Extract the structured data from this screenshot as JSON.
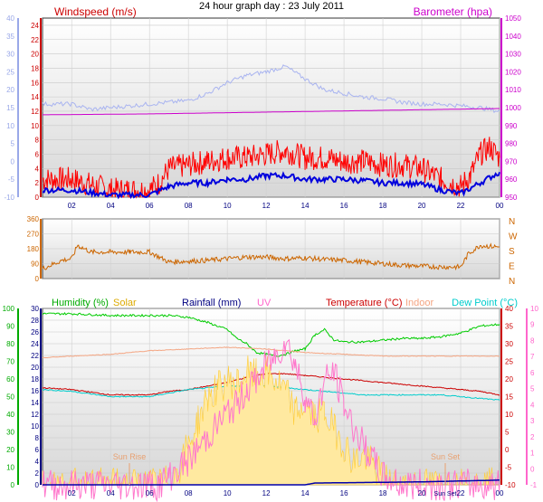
{
  "title": "24 hour graph day : 23 July 2011",
  "chart_data": [
    {
      "id": "wind-baro",
      "type": "line",
      "labels": {
        "windspeed": "Windspeed (m/s)",
        "barometer": "Barometer (hpa)"
      },
      "x_ticks": [
        "02",
        "04",
        "06",
        "08",
        "10",
        "12",
        "14",
        "16",
        "18",
        "20",
        "22",
        "00"
      ],
      "x_range": [
        0.5,
        24.0
      ],
      "left_axis_red": {
        "ticks": [
          0,
          2,
          4,
          6,
          8,
          10,
          12,
          14,
          16,
          18,
          20,
          22,
          24
        ],
        "range": [
          0,
          25
        ],
        "color": "#cc0000"
      },
      "left_axis_blue": {
        "ticks": [
          -10,
          -5,
          0,
          5,
          10,
          15,
          20,
          25,
          30,
          35,
          40
        ],
        "range": [
          -10,
          40
        ],
        "color": "#9aa8e8"
      },
      "right_axis": {
        "ticks": [
          950,
          960,
          970,
          980,
          990,
          1000,
          1010,
          1020,
          1030,
          1040,
          1050
        ],
        "range": [
          950,
          1050
        ],
        "color": "#cc00cc"
      },
      "series": [
        {
          "key": "windspeed",
          "color": "#ff0000",
          "axis": "left_axis_red",
          "x": [
            0.5,
            2,
            4,
            6,
            6.5,
            7,
            8,
            9,
            10,
            11,
            12,
            13,
            14,
            15,
            16,
            17,
            18,
            19,
            20,
            21,
            22,
            22.5,
            23,
            23.5,
            24
          ],
          "y": [
            2.5,
            2.5,
            1.0,
            1.0,
            2.0,
            4.0,
            4.5,
            5.0,
            5.5,
            5.5,
            6.0,
            6.5,
            5.5,
            5.5,
            5.0,
            5.0,
            4.5,
            4.5,
            4.0,
            2.5,
            1.5,
            3.0,
            6.0,
            7.0,
            5.5
          ]
        },
        {
          "key": "windspeed_avg",
          "color": "#0000dd",
          "axis": "left_axis_red",
          "x": [
            0.5,
            2,
            4,
            6,
            7,
            8,
            9,
            10,
            11,
            12,
            13,
            14,
            15,
            16,
            17,
            18,
            19,
            20,
            21,
            22,
            23,
            24
          ],
          "y": [
            1.0,
            1.0,
            0.3,
            0.3,
            1.5,
            2.0,
            2.0,
            2.5,
            2.5,
            3.0,
            3.0,
            2.5,
            2.5,
            2.5,
            2.3,
            2.0,
            2.0,
            1.8,
            1.0,
            0.5,
            2.0,
            3.5
          ]
        },
        {
          "key": "windspeed_blue_scale",
          "color": "#a9b4f0",
          "axis": "left_axis_blue",
          "x": [
            0.5,
            2,
            3,
            4,
            5,
            6,
            7,
            8,
            9,
            10,
            11,
            12,
            13,
            14,
            15,
            16,
            17,
            18,
            19,
            20,
            21,
            22,
            23,
            24
          ],
          "y": [
            16,
            16,
            14.5,
            15,
            15.5,
            16,
            16.5,
            17,
            19,
            22,
            24,
            25,
            26.5,
            23,
            20,
            19,
            18,
            17.5,
            16.5,
            16,
            16,
            15.5,
            15,
            14
          ]
        },
        {
          "key": "barometer",
          "color": "#cc00cc",
          "axis": "right_axis",
          "x": [
            0.5,
            6,
            12,
            18,
            24
          ],
          "y": [
            996,
            996.5,
            997.5,
            998.5,
            999.5
          ]
        }
      ]
    },
    {
      "id": "wind-direction",
      "type": "line",
      "left_ticks": [
        0,
        90,
        180,
        270,
        360
      ],
      "range": [
        0,
        360
      ],
      "right_labels": [
        "N",
        "W",
        "S",
        "E",
        "N"
      ],
      "series": [
        {
          "key": "direction",
          "color": "#cc6600",
          "x": [
            0.5,
            1,
            1.5,
            2,
            2.3,
            3,
            4,
            5,
            6,
            7,
            8,
            9,
            10,
            11,
            12,
            13,
            14,
            15,
            16,
            17,
            18,
            19,
            20,
            21,
            22,
            22.4,
            23,
            24
          ],
          "y": [
            60,
            85,
            110,
            120,
            200,
            160,
            160,
            160,
            160,
            100,
            105,
            110,
            120,
            130,
            130,
            120,
            125,
            115,
            110,
            100,
            90,
            80,
            75,
            70,
            70,
            150,
            200,
            190
          ]
        }
      ]
    },
    {
      "id": "temp-hum-solar",
      "type": "line",
      "labels": {
        "humidity": "Humidity (%)",
        "solar": "Solar",
        "rainfall": "Rainfall (mm)",
        "uv": "UV",
        "temperature": "Temperature (°C)",
        "indoor": "Indoor",
        "dewpoint": "Dew Point (°C)"
      },
      "annotations": [
        "Sun Rise",
        "Sun Set"
      ],
      "x_tick_sunset": "Sun Set",
      "axes": {
        "humidity": {
          "ticks": [
            0,
            10,
            20,
            30,
            40,
            50,
            60,
            70,
            80,
            90,
            100
          ],
          "range": [
            0,
            100
          ],
          "color": "#00aa00"
        },
        "rainfall": {
          "ticks": [
            0,
            2,
            4,
            6,
            8,
            10,
            12,
            14,
            16,
            18,
            20,
            22,
            24,
            26,
            28,
            30
          ],
          "range": [
            0,
            30
          ],
          "color": "#000080"
        },
        "temperature": {
          "ticks": [
            -10,
            -5,
            0,
            5,
            10,
            15,
            20,
            25,
            30,
            35,
            40
          ],
          "range": [
            -10,
            40
          ],
          "color": "#cc0000"
        },
        "uv": {
          "ticks": [
            -1,
            0,
            1,
            2,
            3,
            4,
            5,
            6,
            7,
            8,
            9,
            10
          ],
          "range": [
            -1,
            10
          ],
          "color": "#ff66cc"
        }
      },
      "series": [
        {
          "key": "humidity",
          "color": "#00cc00",
          "axis": "humidity",
          "x": [
            0.5,
            2,
            4,
            6,
            7,
            8,
            9,
            10,
            10.5,
            11,
            11.5,
            12,
            12.5,
            13,
            13.5,
            14,
            14.5,
            15,
            15.5,
            16,
            17,
            18,
            19,
            20,
            21,
            22,
            23,
            24
          ],
          "y": [
            97,
            97,
            96,
            96,
            96,
            95,
            92,
            88,
            83,
            80,
            75,
            74,
            73,
            74,
            76,
            77,
            85,
            88,
            82,
            81,
            81,
            82,
            83,
            83,
            84,
            86,
            90,
            91
          ]
        },
        {
          "key": "temperature",
          "color": "#cc0000",
          "axis": "temperature",
          "x": [
            0.5,
            2,
            4,
            6,
            7,
            8,
            9,
            10,
            11,
            12,
            13,
            14,
            15,
            16,
            17,
            18,
            19,
            20,
            21,
            22,
            23,
            24
          ],
          "y": [
            17.5,
            17,
            15.5,
            15.5,
            16.5,
            17,
            18,
            19,
            20.5,
            21.5,
            21.5,
            21,
            20.5,
            20,
            19.5,
            19,
            18.5,
            18,
            17.5,
            17,
            16.5,
            15.5
          ]
        },
        {
          "key": "dewpoint",
          "color": "#00cccc",
          "axis": "temperature",
          "x": [
            0.5,
            2,
            4,
            6,
            7,
            8,
            9,
            10,
            11,
            12,
            13,
            14,
            15,
            16,
            17,
            18,
            19,
            20,
            21,
            22,
            23,
            24
          ],
          "y": [
            17,
            16.5,
            15,
            15,
            16,
            17,
            17.5,
            18,
            18,
            18,
            17.5,
            17,
            16.5,
            16,
            15.5,
            15.5,
            15.5,
            15.5,
            15.5,
            15,
            14.5,
            14
          ]
        },
        {
          "key": "indoor",
          "color": "#f4a582",
          "axis": "temperature",
          "x": [
            0.5,
            2,
            4,
            6,
            8,
            10,
            12,
            13,
            14,
            16,
            18,
            20,
            22,
            24
          ],
          "y": [
            26,
            26.5,
            27,
            28,
            28.5,
            29,
            28.5,
            28,
            27.5,
            27,
            26.5,
            26.5,
            26.5,
            26.5
          ]
        },
        {
          "key": "solar",
          "color": "#ffcc33",
          "axis": "uv",
          "fill": "#ffe9a0",
          "x": [
            0.5,
            6,
            7,
            7.5,
            8,
            8.5,
            9,
            9.5,
            10,
            10.5,
            11,
            11.5,
            12,
            12.5,
            13,
            13.5,
            14,
            14.5,
            15,
            15.5,
            16,
            16.5,
            17,
            17.5,
            18,
            18.5,
            24
          ],
          "y": [
            -1,
            -1,
            -0.8,
            0,
            1.5,
            3,
            4.5,
            5,
            5.5,
            5.3,
            6,
            5.8,
            6,
            5.5,
            4.8,
            3.5,
            4,
            3.2,
            3.5,
            2.5,
            1.5,
            0.5,
            0.8,
            0.2,
            -0.5,
            -1,
            -1
          ]
        },
        {
          "key": "uv",
          "color": "#ff77cc",
          "axis": "uv",
          "x": [
            0.5,
            6.5,
            7,
            8,
            9,
            10,
            10.5,
            11,
            11.5,
            12,
            12.5,
            13,
            13.5,
            14,
            14.5,
            15,
            15.5,
            16,
            16.5,
            17,
            17.5,
            18,
            19,
            24
          ],
          "y": [
            -1,
            -1,
            -0.5,
            0.5,
            2,
            3.5,
            4,
            5,
            5.5,
            6.5,
            7,
            8,
            6.5,
            4.5,
            3,
            5.5,
            6,
            4,
            2.5,
            1.5,
            0.5,
            -0.5,
            -1,
            -1
          ]
        },
        {
          "key": "rainfall",
          "color": "#0000aa",
          "axis": "rainfall",
          "x": [
            0.5,
            8,
            14,
            14.5,
            20,
            24
          ],
          "y": [
            0,
            0,
            0,
            0.3,
            0.5,
            0.8
          ]
        }
      ]
    }
  ]
}
